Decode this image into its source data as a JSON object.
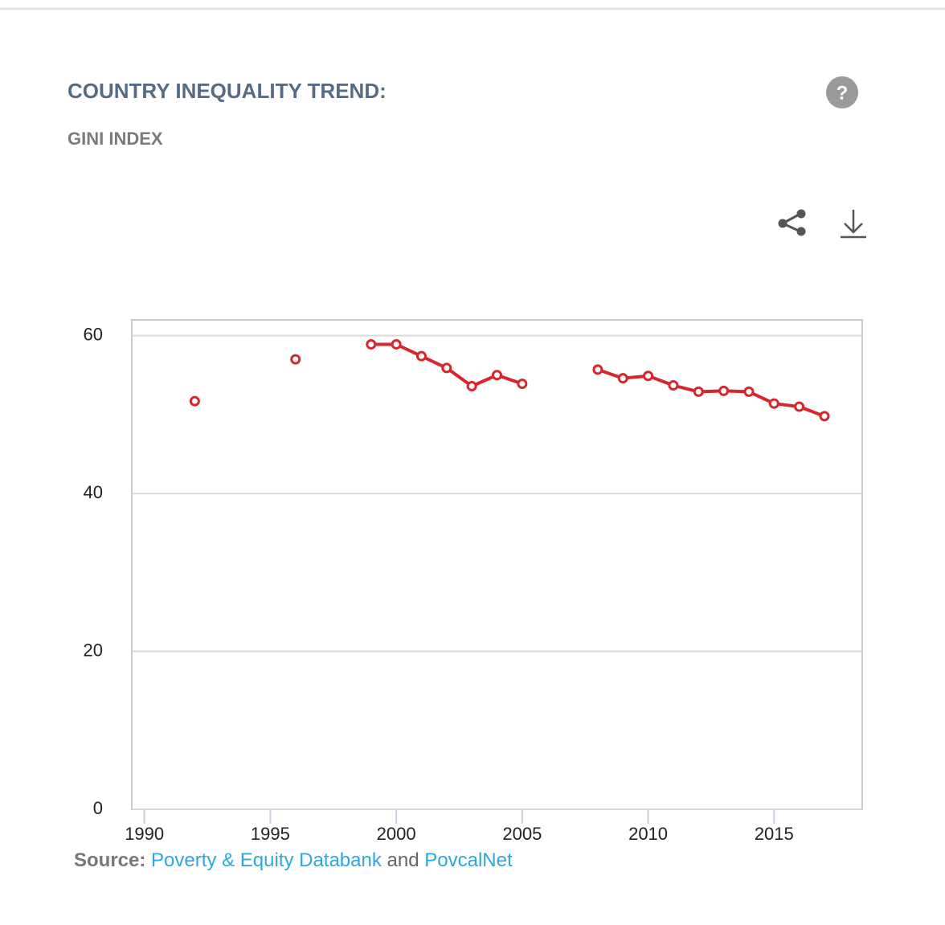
{
  "header": {
    "title": "COUNTRY INEQUALITY TREND:",
    "subtitle": "GINI INDEX",
    "help": "?"
  },
  "chart_data": {
    "type": "line",
    "x": [
      1992,
      1993,
      1994,
      1995,
      1996,
      1997,
      1998,
      1999,
      2000,
      2001,
      2002,
      2003,
      2004,
      2005,
      2006,
      2007,
      2008,
      2009,
      2010,
      2011,
      2012,
      2013,
      2014,
      2015,
      2016,
      2017
    ],
    "series": [
      {
        "name": "Gini index",
        "color": "#d7262c",
        "values": [
          51.7,
          null,
          null,
          null,
          57.0,
          null,
          null,
          58.9,
          58.9,
          57.4,
          55.9,
          53.6,
          55.0,
          53.9,
          null,
          null,
          55.7,
          54.6,
          54.9,
          53.7,
          52.9,
          53.0,
          52.9,
          51.4,
          51.0,
          49.8
        ]
      }
    ],
    "xlim": [
      1989.5,
      2018.5
    ],
    "xticks": [
      1990,
      1995,
      2000,
      2005,
      2010,
      2015
    ],
    "ylim": [
      0,
      62
    ],
    "yticks": [
      0,
      20,
      40,
      60
    ],
    "grid": true
  },
  "source": {
    "label": "Source:",
    "link1": "Poverty & Equity Databank",
    "joiner": "and",
    "link2": "PovcalNet"
  }
}
